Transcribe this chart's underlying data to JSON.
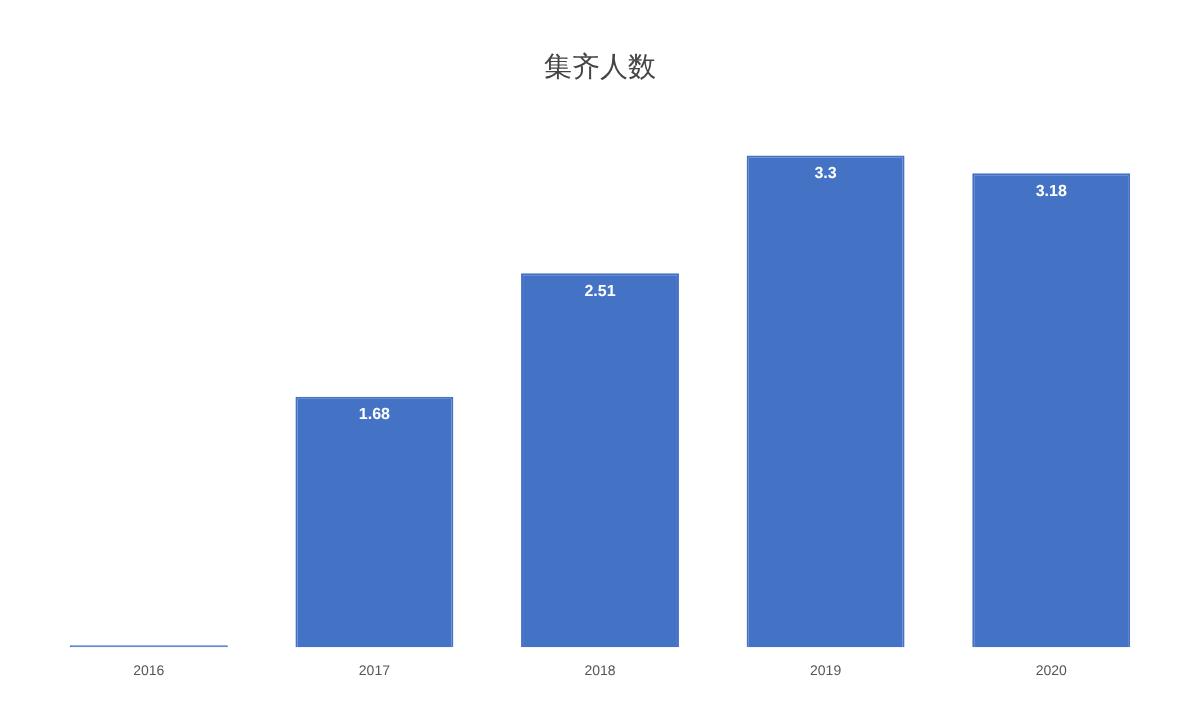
{
  "chart_data": {
    "type": "bar",
    "title": "集齐人数",
    "categories": [
      "2016",
      "2017",
      "2018",
      "2019",
      "2020"
    ],
    "values": [
      0,
      1.68,
      2.51,
      3.3,
      3.18
    ],
    "value_labels": [
      null,
      "1.68",
      "2.51",
      "3.3",
      "3.18"
    ],
    "color": "#4472c4",
    "grid": false,
    "legend": false
  }
}
